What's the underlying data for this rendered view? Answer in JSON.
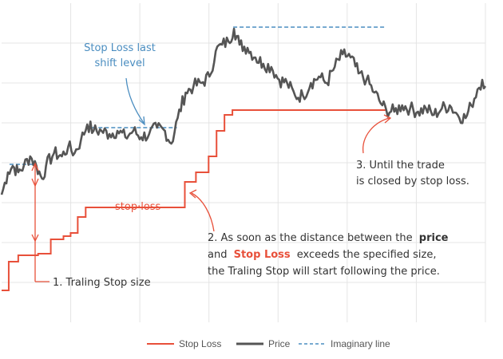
{
  "chart_data": {
    "type": "line",
    "title": "",
    "xlabel": "",
    "ylabel": "",
    "grid": true,
    "legend_placement": "bottom-center",
    "series": [
      {
        "name": "Stop Loss",
        "color": "#e8503a",
        "step": true,
        "values": [
          [
            0,
            1.0
          ],
          [
            9,
            1.9
          ],
          [
            21,
            2.1
          ],
          [
            44,
            2.1
          ],
          [
            46,
            2.15
          ],
          [
            62,
            2.6
          ],
          [
            78,
            2.7
          ],
          [
            87,
            2.8
          ],
          [
            96,
            3.3
          ],
          [
            106,
            3.6
          ],
          [
            135,
            3.6
          ],
          [
            171,
            3.6
          ],
          [
            221,
            3.6
          ],
          [
            231,
            4.4
          ],
          [
            245,
            4.7
          ],
          [
            261,
            5.2
          ],
          [
            271,
            6.0
          ],
          [
            281,
            6.5
          ],
          [
            291,
            6.65
          ],
          [
            485,
            6.65
          ]
        ]
      },
      {
        "name": "Price",
        "color": "#555555",
        "step": false,
        "values": [
          [
            0,
            4.0
          ],
          [
            8,
            4.7
          ],
          [
            14,
            4.9
          ],
          [
            21,
            4.7
          ],
          [
            28,
            4.9
          ],
          [
            36,
            5.2
          ],
          [
            44,
            4.9
          ],
          [
            51,
            4.5
          ],
          [
            56,
            4.9
          ],
          [
            66,
            5.3
          ],
          [
            76,
            5.2
          ],
          [
            84,
            5.5
          ],
          [
            92,
            5.3
          ],
          [
            100,
            5.7
          ],
          [
            108,
            6.2
          ],
          [
            116,
            6.0
          ],
          [
            126,
            6.0
          ],
          [
            136,
            5.9
          ],
          [
            146,
            6.0
          ],
          [
            156,
            5.8
          ],
          [
            166,
            6.0
          ],
          [
            176,
            5.8
          ],
          [
            186,
            5.9
          ],
          [
            196,
            6.1
          ],
          [
            206,
            6.0
          ],
          [
            214,
            5.6
          ],
          [
            222,
            6.4
          ],
          [
            232,
            7.2
          ],
          [
            242,
            7.4
          ],
          [
            252,
            7.5
          ],
          [
            262,
            7.7
          ],
          [
            270,
            8.5
          ],
          [
            278,
            8.7
          ],
          [
            286,
            8.8
          ],
          [
            293,
            9.2
          ],
          [
            300,
            8.7
          ],
          [
            310,
            8.6
          ],
          [
            320,
            8.3
          ],
          [
            330,
            8.1
          ],
          [
            340,
            8.0
          ],
          [
            350,
            7.6
          ],
          [
            360,
            7.5
          ],
          [
            370,
            7.1
          ],
          [
            380,
            7.1
          ],
          [
            390,
            7.5
          ],
          [
            400,
            7.7
          ],
          [
            410,
            7.5
          ],
          [
            420,
            8.0
          ],
          [
            430,
            8.4
          ],
          [
            440,
            8.3
          ],
          [
            450,
            7.8
          ],
          [
            460,
            7.6
          ],
          [
            470,
            7.2
          ],
          [
            480,
            6.8
          ],
          [
            485,
            6.65
          ],
          [
            495,
            6.6
          ],
          [
            505,
            6.8
          ],
          [
            515,
            6.7
          ],
          [
            525,
            6.6
          ],
          [
            535,
            6.7
          ],
          [
            545,
            6.5
          ],
          [
            555,
            6.7
          ],
          [
            565,
            6.8
          ],
          [
            575,
            6.5
          ],
          [
            585,
            6.4
          ],
          [
            592,
            6.8
          ],
          [
            600,
            7.3
          ],
          [
            606,
            7.6
          ],
          [
            610,
            7.4
          ]
        ]
      },
      {
        "name": "Imaginary line",
        "color": "#4a8dc0",
        "dashed": true,
        "segments": [
          [
            [
              10,
              4.95
            ],
            [
              44,
              4.95
            ]
          ],
          [
            [
              106,
              6.1
            ],
            [
              221,
              6.1
            ]
          ],
          [
            [
              292,
              9.25
            ],
            [
              485,
              9.25
            ]
          ]
        ]
      }
    ],
    "xlim": [
      0,
      610
    ],
    "ylim": [
      0,
      10
    ],
    "annotations": [
      {
        "id": "stoploss-last-shift",
        "color": "#4a8dc0",
        "lines": [
          "Stop Loss last",
          "shift level"
        ]
      },
      {
        "id": "stop-loss-label",
        "color": "#e8503a",
        "lines": [
          "stop·loss"
        ]
      },
      {
        "id": "trailing-stop-size",
        "color": "#333333",
        "lines": [
          "1. Traling Stop size"
        ]
      },
      {
        "id": "distance-explanation",
        "color": "#333333",
        "lines": [
          "2. As soon as the distance between the",
          "price",
          "and",
          "Stop Loss",
          "exceeds the specified size,",
          "the Traling Stop will start following the price."
        ]
      },
      {
        "id": "closed-by-stop",
        "color": "#333333",
        "lines": [
          "3. Until the trade",
          "is closed by stop loss."
        ]
      }
    ]
  }
}
